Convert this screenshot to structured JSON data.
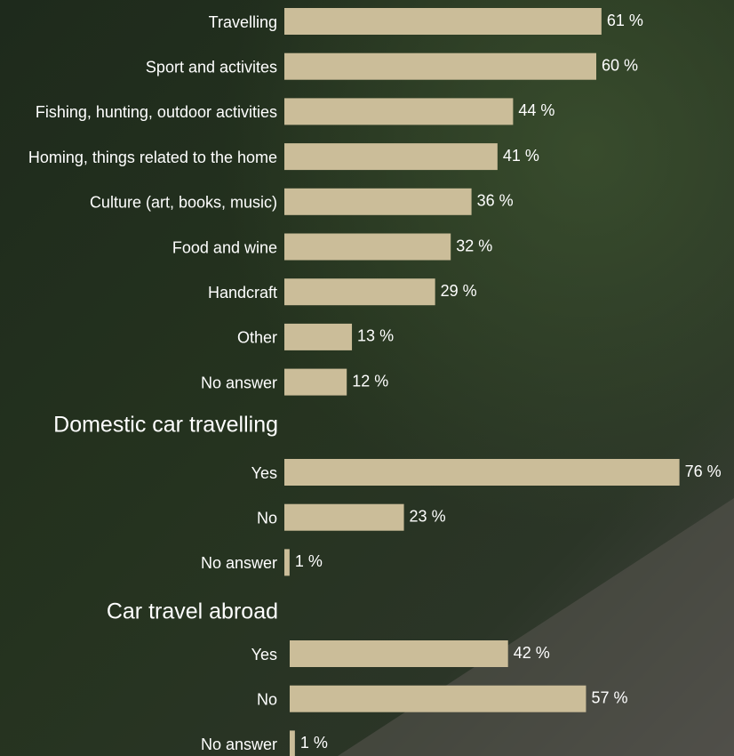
{
  "chart_data": [
    {
      "type": "bar",
      "orientation": "horizontal",
      "color": "#cbbd99",
      "categories": [
        "Travelling",
        "Sport and activites",
        "Fishing, hunting, outdoor activities",
        "Homing, things related to the home",
        "Culture (art, books, music)",
        "Food and wine",
        "Handcraft",
        "Other",
        "No answer"
      ],
      "values": [
        61,
        60,
        44,
        41,
        36,
        32,
        29,
        13,
        12
      ],
      "value_labels": [
        "61 %",
        "60 %",
        "44 %",
        "41 %",
        "36 %",
        "32 %",
        "29 %",
        "13 %",
        "12 %"
      ]
    },
    {
      "type": "bar",
      "orientation": "horizontal",
      "color": "#cbbd99",
      "title": "Domestic car travelling",
      "categories": [
        "Yes",
        "No",
        "No answer"
      ],
      "values": [
        76,
        23,
        1
      ],
      "value_labels": [
        "76 %",
        "23 %",
        "1 %"
      ]
    },
    {
      "type": "bar",
      "orientation": "horizontal",
      "color": "#cbbd99",
      "title": "Car travel abroad",
      "categories": [
        "Yes",
        "No",
        "No answer"
      ],
      "values": [
        42,
        57,
        1
      ],
      "value_labels": [
        "42 %",
        "57 %",
        "1 %"
      ]
    }
  ]
}
